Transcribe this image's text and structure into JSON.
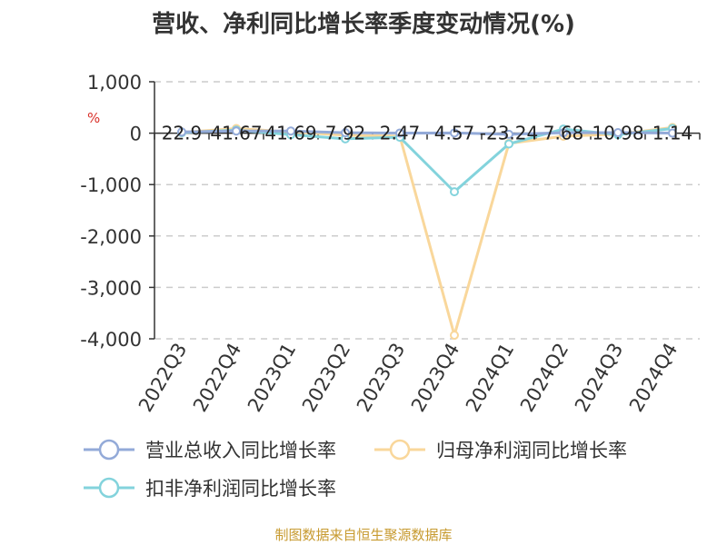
{
  "title": "营收、净利同比增长率季度变动情况(%)",
  "unit": "%",
  "source": "制图数据来自恒生聚源数据库",
  "colors": {
    "revenue": "#93aad8",
    "net_profit": "#f9d79b",
    "deducted_profit": "#83d3dc"
  },
  "chart_data": {
    "type": "line",
    "categories": [
      "2022Q3",
      "2022Q4",
      "2023Q1",
      "2023Q2",
      "2023Q3",
      "2023Q4",
      "2024Q1",
      "2024Q2",
      "2024Q3",
      "2024Q4"
    ],
    "ylim": [
      -4000,
      1000
    ],
    "yticks": [
      1000,
      0,
      -1000,
      -2000,
      -3000,
      -4000
    ],
    "ytick_labels": [
      "1,000",
      "0",
      "-1,000",
      "-2,000",
      "-3,000",
      "-4,000"
    ],
    "ylabel": "%",
    "grid": true,
    "legend_position": "bottom",
    "data_labels": [
      "22.9",
      "41.67",
      "41.69",
      "7.92",
      "2.47",
      "4.57",
      "-23.24",
      "7.68",
      "10.98",
      "1.14"
    ],
    "series": [
      {
        "name": "营业总收入同比增长率",
        "color_key": "revenue",
        "values": [
          22.9,
          41.67,
          41.69,
          7.92,
          2.47,
          4.57,
          -23.24,
          7.68,
          10.98,
          1.14
        ]
      },
      {
        "name": "归母净利润同比增长率",
        "color_key": "net_profit",
        "values": [
          15,
          90,
          25,
          -40,
          -60,
          -3930,
          -200,
          -60,
          -20,
          110
        ]
      },
      {
        "name": "扣非净利润同比增长率",
        "color_key": "deducted_profit",
        "values": [
          10,
          60,
          -30,
          -110,
          -80,
          -1140,
          -210,
          80,
          -30,
          90
        ]
      }
    ]
  }
}
